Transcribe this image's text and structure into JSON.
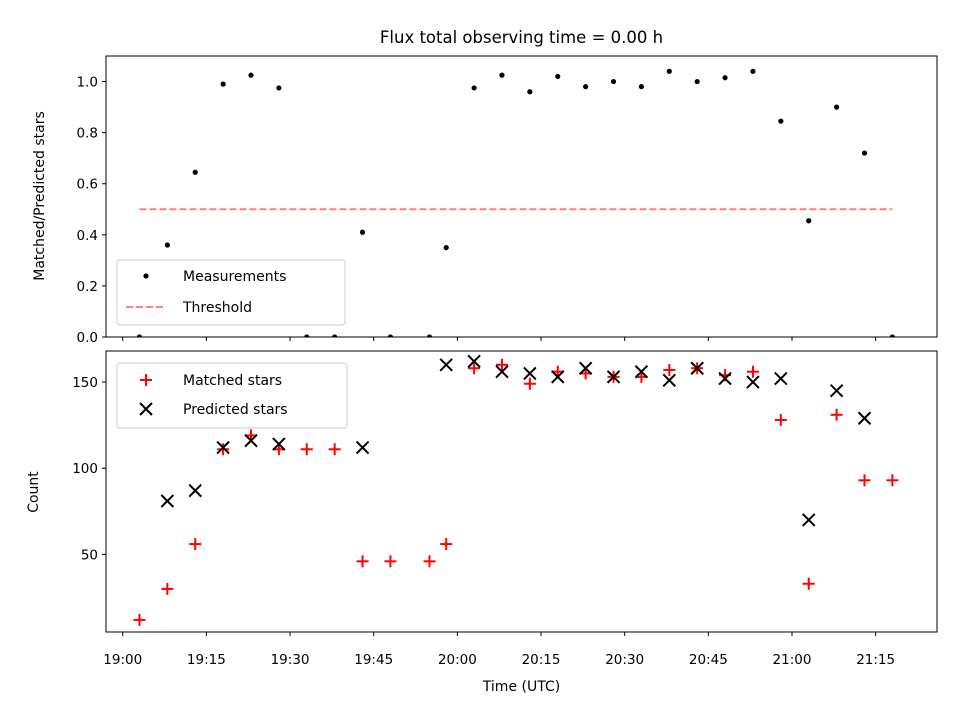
{
  "chart_data": [
    {
      "type": "scatter",
      "title": "Flux total observing time = 0.00 h",
      "xlabel": "",
      "ylabel": "Matched/Predicted stars",
      "xlim": [
        "18:57",
        "21:26"
      ],
      "ylim": [
        0.0,
        1.1
      ],
      "yticks": [
        0.0,
        0.2,
        0.4,
        0.6,
        0.8,
        1.0
      ],
      "ytick_labels": [
        "0.0",
        "0.2",
        "0.4",
        "0.6",
        "0.8",
        "1.0"
      ],
      "legend_position": "lower-left",
      "grid": false,
      "series": [
        {
          "name": "Measurements",
          "color": "#000000",
          "marker": "dot",
          "x": [
            "19:03",
            "19:08",
            "19:13",
            "19:18",
            "19:23",
            "19:28",
            "19:33",
            "19:38",
            "19:43",
            "19:48",
            "19:55",
            "19:58",
            "20:03",
            "20:08",
            "20:13",
            "20:18",
            "20:23",
            "20:28",
            "20:33",
            "20:38",
            "20:43",
            "20:48",
            "20:53",
            "20:58",
            "21:03",
            "21:08",
            "21:13",
            "21:18"
          ],
          "y": [
            0.0,
            0.36,
            0.645,
            0.99,
            1.025,
            0.975,
            0.0,
            0.0,
            0.41,
            0.0,
            0.0,
            0.35,
            0.975,
            1.025,
            0.96,
            1.02,
            0.98,
            1.0,
            0.98,
            1.04,
            1.0,
            1.015,
            1.04,
            0.845,
            0.455,
            0.9,
            0.72,
            0.0
          ]
        },
        {
          "name": "Threshold",
          "color": "#ff8080",
          "style": "dashed",
          "x": [
            "19:03",
            "21:18"
          ],
          "y": [
            0.5,
            0.5
          ]
        }
      ]
    },
    {
      "type": "scatter",
      "title": "",
      "xlabel": "Time (UTC)",
      "ylabel": "Count",
      "xlim": [
        "18:57",
        "21:26"
      ],
      "ylim": [
        5,
        168
      ],
      "xticks": [
        "19:00",
        "19:15",
        "19:30",
        "19:45",
        "20:00",
        "20:15",
        "20:30",
        "20:45",
        "21:00",
        "21:15"
      ],
      "yticks": [
        50,
        100,
        150
      ],
      "ytick_labels": [
        "50",
        "100",
        "150"
      ],
      "legend_position": "upper-left",
      "grid": false,
      "series": [
        {
          "name": "Matched stars",
          "color": "#ff0000",
          "marker": "plus",
          "x": [
            "19:03",
            "19:08",
            "19:13",
            "19:18",
            "19:23",
            "19:28",
            "19:33",
            "19:38",
            "19:43",
            "19:48",
            "19:55",
            "19:58",
            "20:03",
            "20:08",
            "20:13",
            "20:18",
            "20:23",
            "20:28",
            "20:33",
            "20:38",
            "20:43",
            "20:48",
            "20:53",
            "20:58",
            "21:03",
            "21:08",
            "21:13",
            "21:18"
          ],
          "y": [
            12,
            30,
            56,
            111,
            119,
            111,
            111,
            111,
            46,
            46,
            46,
            56,
            158,
            160,
            149,
            156,
            155,
            153,
            153,
            157,
            158,
            154,
            156,
            128,
            33,
            131,
            93,
            93
          ]
        },
        {
          "name": "Predicted stars",
          "color": "#000000",
          "marker": "x",
          "x": [
            "19:08",
            "19:13",
            "19:18",
            "19:23",
            "19:28",
            "19:43",
            "19:58",
            "20:03",
            "20:08",
            "20:13",
            "20:18",
            "20:23",
            "20:28",
            "20:33",
            "20:38",
            "20:43",
            "20:48",
            "20:53",
            "20:58",
            "21:03",
            "21:08",
            "21:13"
          ],
          "y": [
            81,
            87,
            112,
            116,
            114,
            112,
            160,
            162,
            156,
            155,
            153,
            158,
            153,
            156,
            151,
            158,
            152,
            150,
            152,
            70,
            145,
            129
          ]
        }
      ]
    }
  ]
}
